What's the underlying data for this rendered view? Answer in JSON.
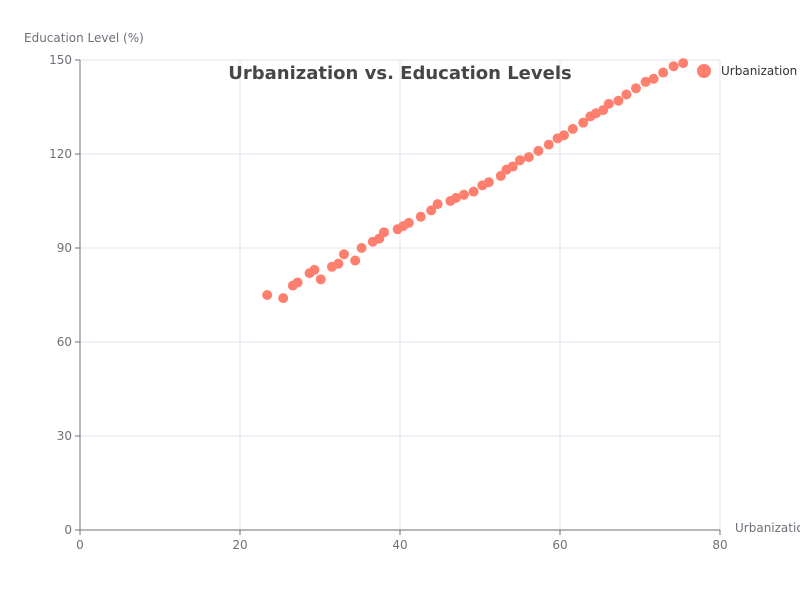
{
  "chart_data": {
    "type": "scatter",
    "title": "Urbanization vs. Education Levels",
    "xlabel": "Urbanization",
    "ylabel": "Education Level (%)",
    "xlim": [
      0,
      80
    ],
    "ylim": [
      0,
      150
    ],
    "x_ticks": [
      "0",
      "20",
      "40",
      "60",
      "80"
    ],
    "y_ticks": [
      "0",
      "30",
      "60",
      "90",
      "120",
      "150"
    ],
    "grid": true,
    "legend_position": "top-right",
    "series": [
      {
        "name": "Urbanization",
        "color": "#ff7f6e",
        "points": [
          [
            23.4,
            75
          ],
          [
            25.4,
            74
          ],
          [
            26.6,
            78
          ],
          [
            27.2,
            79
          ],
          [
            28.7,
            82
          ],
          [
            29.3,
            83
          ],
          [
            30.1,
            80
          ],
          [
            31.5,
            84
          ],
          [
            32.3,
            85
          ],
          [
            33.0,
            88
          ],
          [
            34.4,
            86
          ],
          [
            35.2,
            90
          ],
          [
            36.6,
            92
          ],
          [
            37.4,
            93
          ],
          [
            38.0,
            95
          ],
          [
            39.7,
            96
          ],
          [
            40.4,
            97
          ],
          [
            41.1,
            98
          ],
          [
            42.6,
            100
          ],
          [
            43.9,
            102
          ],
          [
            44.7,
            104
          ],
          [
            46.3,
            105
          ],
          [
            47.0,
            106
          ],
          [
            48.0,
            107
          ],
          [
            49.2,
            108
          ],
          [
            50.3,
            110
          ],
          [
            51.1,
            111
          ],
          [
            52.6,
            113
          ],
          [
            53.3,
            115
          ],
          [
            54.1,
            116
          ],
          [
            55.0,
            118
          ],
          [
            56.1,
            119
          ],
          [
            57.3,
            121
          ],
          [
            58.6,
            123
          ],
          [
            59.7,
            125
          ],
          [
            60.5,
            126
          ],
          [
            61.6,
            128
          ],
          [
            62.9,
            130
          ],
          [
            63.8,
            132
          ],
          [
            64.5,
            133
          ],
          [
            65.4,
            134
          ],
          [
            66.1,
            136
          ],
          [
            67.3,
            137
          ],
          [
            68.3,
            139
          ],
          [
            69.5,
            141
          ],
          [
            70.7,
            143
          ],
          [
            71.7,
            144
          ],
          [
            72.9,
            146
          ],
          [
            74.2,
            148
          ],
          [
            75.4,
            149
          ]
        ]
      }
    ]
  }
}
